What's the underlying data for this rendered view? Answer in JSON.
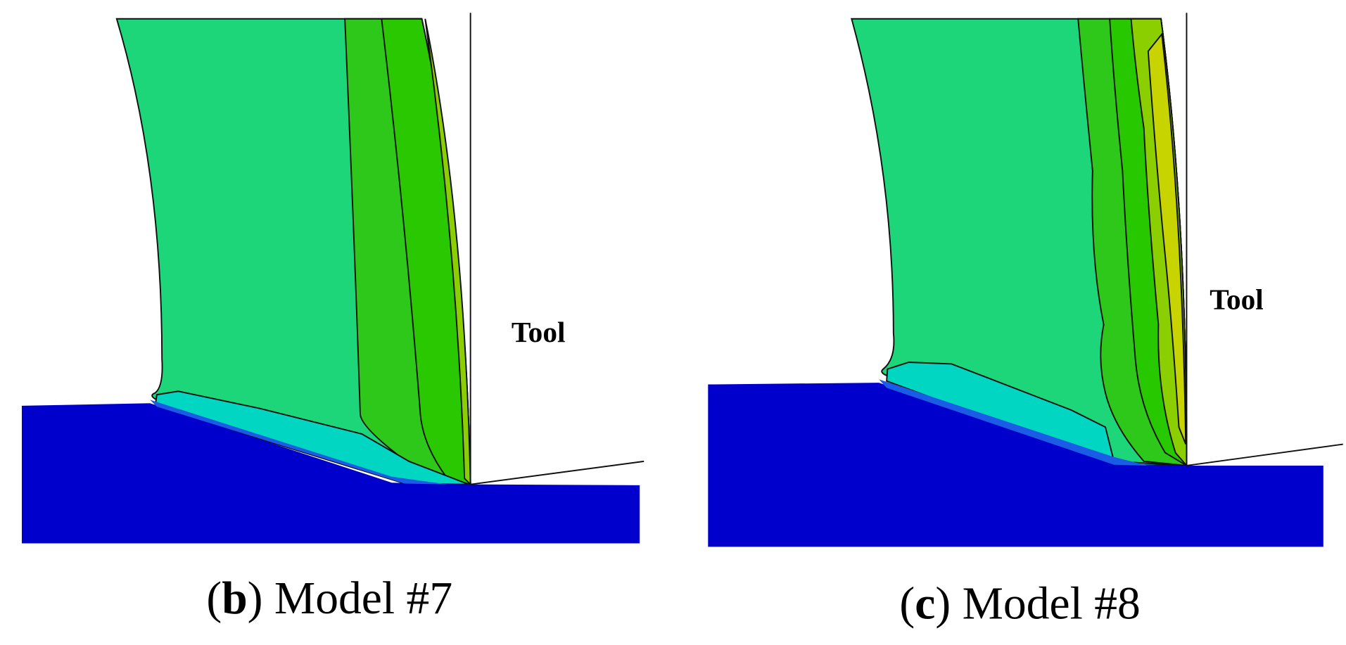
{
  "panels": [
    {
      "tool": "Tool",
      "caption": {
        "open": "(",
        "letter": "b",
        "rest": ") Model #7"
      }
    },
    {
      "tool": "Tool",
      "caption": {
        "open": "(",
        "letter": "c",
        "rest": ") Model #8"
      }
    }
  ]
}
